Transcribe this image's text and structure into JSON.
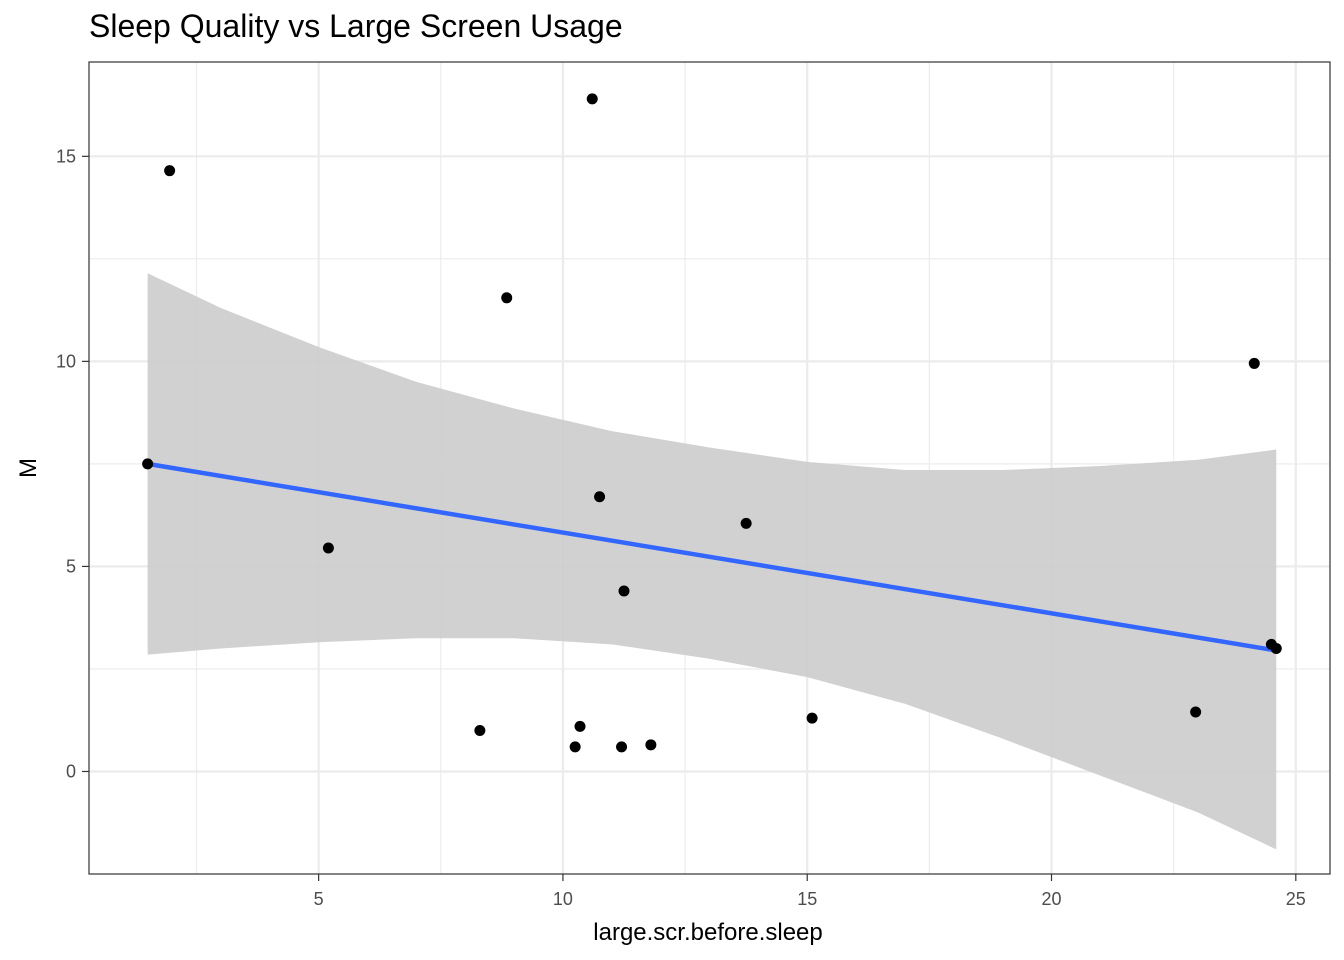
{
  "chart_data": {
    "type": "scatter",
    "title": "Sleep Quality vs Large Screen Usage",
    "xlabel": "large.scr.before.sleep",
    "ylabel": "M",
    "xlim": [
      0.3,
      25.7
    ],
    "ylim": [
      -2.5,
      17.3
    ],
    "x_ticks": [
      5,
      10,
      15,
      20,
      25
    ],
    "y_ticks": [
      0,
      5,
      10,
      15
    ],
    "grid": true,
    "points": [
      {
        "x": 1.5,
        "y": 7.5
      },
      {
        "x": 1.95,
        "y": 14.65
      },
      {
        "x": 5.2,
        "y": 5.45
      },
      {
        "x": 8.3,
        "y": 1.0
      },
      {
        "x": 8.85,
        "y": 11.55
      },
      {
        "x": 10.25,
        "y": 0.6
      },
      {
        "x": 10.35,
        "y": 1.1
      },
      {
        "x": 10.6,
        "y": 16.4
      },
      {
        "x": 10.75,
        "y": 6.7
      },
      {
        "x": 11.25,
        "y": 4.4
      },
      {
        "x": 11.2,
        "y": 0.6
      },
      {
        "x": 11.8,
        "y": 0.65
      },
      {
        "x": 13.75,
        "y": 6.05
      },
      {
        "x": 15.1,
        "y": 1.3
      },
      {
        "x": 22.95,
        "y": 1.45
      },
      {
        "x": 24.15,
        "y": 9.95
      },
      {
        "x": 24.5,
        "y": 3.1
      },
      {
        "x": 24.6,
        "y": 3.0
      }
    ],
    "fit_line": {
      "x": [
        1.5,
        24.6
      ],
      "y": [
        7.5,
        2.95
      ],
      "color": "#3366FF"
    },
    "confidence_band": {
      "x": [
        1.5,
        3,
        5,
        7,
        9,
        11,
        13,
        15,
        17,
        19,
        21,
        23,
        24.6
      ],
      "upper": [
        12.15,
        11.3,
        10.35,
        9.5,
        8.85,
        8.3,
        7.9,
        7.55,
        7.35,
        7.35,
        7.45,
        7.6,
        7.85
      ],
      "lower": [
        2.85,
        3.0,
        3.15,
        3.25,
        3.25,
        3.1,
        2.75,
        2.3,
        1.65,
        0.8,
        -0.1,
        -1.0,
        -1.9
      ],
      "color": "#cccccc"
    },
    "colors": {
      "points": "#000000",
      "grid": "#ebebeb",
      "panel_border": "#333333"
    }
  }
}
